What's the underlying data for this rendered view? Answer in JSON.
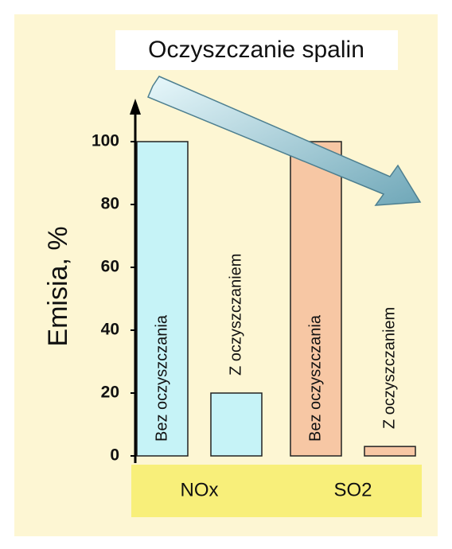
{
  "chart_data": {
    "type": "bar",
    "title": "Oczyszczanie spalin",
    "y_label": "Emisia, %",
    "categories": [
      "NOx",
      "SO2"
    ],
    "category_colors": [
      "#c6f3f7",
      "#f7c7a4"
    ],
    "series": [
      {
        "name": "Bez oczyszczania",
        "values": [
          100,
          100
        ]
      },
      {
        "name": "Z oczyszczaniem",
        "values": [
          20,
          3
        ]
      }
    ],
    "ylim": [
      0,
      100
    ],
    "yticks": [
      0,
      20,
      40,
      60,
      80,
      100
    ]
  }
}
